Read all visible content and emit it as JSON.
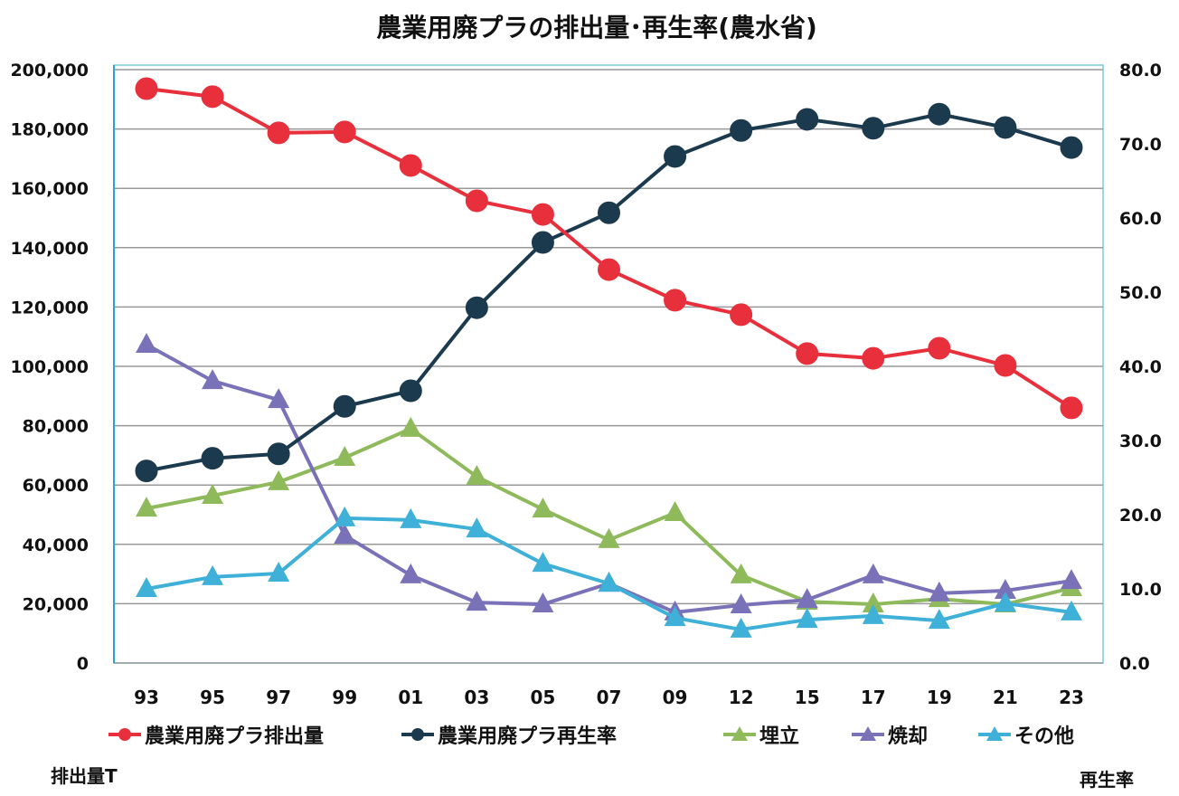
{
  "chart_data": {
    "type": "line",
    "title": "農業用廃プラの排出量･再生率(農水省)",
    "categories": [
      "93",
      "95",
      "97",
      "99",
      "01",
      "03",
      "05",
      "07",
      "09",
      "12",
      "15",
      "17",
      "19",
      "21",
      "23"
    ],
    "left_axis": {
      "label": "排出量T",
      "range": [
        0,
        200000
      ],
      "ticks": [
        "0",
        "20,000",
        "40,000",
        "60,000",
        "80,000",
        "100,000",
        "120,000",
        "140,000",
        "160,000",
        "180,000",
        "200,000"
      ]
    },
    "right_axis": {
      "label": "再生率",
      "range": [
        0,
        80
      ],
      "ticks": [
        "0.0",
        "10.0",
        "20.0",
        "30.0",
        "40.0",
        "50.0",
        "60.0",
        "70.0",
        "80.0"
      ]
    },
    "grid": true,
    "legend_position": "bottom",
    "series": [
      {
        "name": "農業用廃プラ排出量",
        "axis": "left",
        "marker": "circle",
        "color": "#e8303c",
        "values": [
          193600,
          190900,
          178700,
          179000,
          167700,
          155800,
          151200,
          132600,
          122300,
          117400,
          104300,
          102700,
          106100,
          100300,
          86000
        ]
      },
      {
        "name": "農業用廃プラ再生率",
        "axis": "right",
        "marker": "circle",
        "color": "#1c3a4e",
        "values": [
          25.9,
          27.6,
          28.2,
          34.6,
          36.7,
          47.9,
          56.7,
          60.7,
          68.3,
          71.8,
          73.3,
          72.1,
          74.0,
          72.2,
          69.5
        ]
      },
      {
        "name": "埋立",
        "axis": "left",
        "marker": "triangle",
        "color": "#8fba5c",
        "values": [
          52100,
          56400,
          61000,
          69200,
          79000,
          62800,
          51800,
          41500,
          50600,
          29600,
          20700,
          19800,
          21600,
          19800,
          25300
        ]
      },
      {
        "name": "焼却",
        "axis": "left",
        "marker": "triangle",
        "color": "#7a72b8",
        "values": [
          107300,
          95100,
          88700,
          43000,
          29600,
          20400,
          19800,
          26800,
          17100,
          19500,
          21300,
          29600,
          23500,
          24400,
          27700
        ]
      },
      {
        "name": "その他",
        "axis": "left",
        "marker": "triangle",
        "color": "#3fb0d8",
        "values": [
          25000,
          29000,
          30200,
          48800,
          48200,
          45100,
          33500,
          26800,
          15200,
          11300,
          14600,
          15900,
          14300,
          20100,
          17100
        ]
      }
    ]
  }
}
